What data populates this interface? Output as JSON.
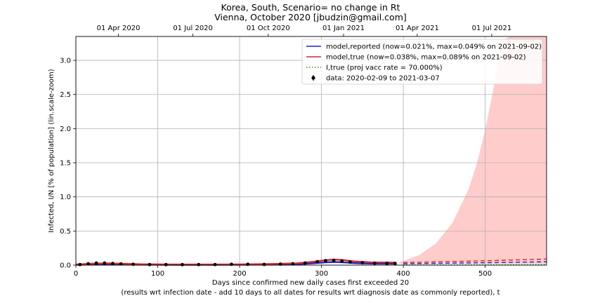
{
  "chart_data": {
    "type": "line",
    "title": "Korea, South, Scenario= no change in Rt",
    "subtitle": "Vienna, October 2020 [jbudzin@gmail.com]",
    "xlabel": "Days since confirmed new daily cases first exceeded 20",
    "xlabel2": "(results wrt infection date - add 10 days to all dates for results wrt diagnosis date as commonly reported), t",
    "ylabel": "Infected, I/N [% of population] (lin.scale-zoom)",
    "xlim": [
      0,
      575
    ],
    "ylim": [
      0,
      3.35
    ],
    "x_ticks": [
      0,
      100,
      200,
      300,
      400,
      500
    ],
    "y_ticks": [
      0.0,
      0.5,
      1.0,
      1.5,
      2.0,
      2.5,
      3.0
    ],
    "y_tick_labels": [
      "0.0",
      "0.5",
      "1.0",
      "1.5",
      "2.0",
      "2.5",
      "3.0"
    ],
    "top_axis": {
      "ticks": [
        {
          "day": 52,
          "label": "01 Apr 2020"
        },
        {
          "day": 143,
          "label": "01 Jul 2020"
        },
        {
          "day": 235,
          "label": "01 Oct 2020"
        },
        {
          "day": 327,
          "label": "01 Jan 2021"
        },
        {
          "day": 417,
          "label": "01 Apr 2021"
        },
        {
          "day": 508,
          "label": "01 Jul 2021"
        }
      ]
    },
    "grid": true,
    "legend_position": "top-right",
    "legend": [
      {
        "label": "model,reported (now=0.021%, max=0.049% on 2021-09-02)",
        "color": "#1f1fcf",
        "style": "solid"
      },
      {
        "label": "model,true (now=0.038%, max=0.089% on 2021-09-02)",
        "color": "#d62728",
        "style": "solid"
      },
      {
        "label": "I,true (proj vacc rate = 70.000%)",
        "color": "#2ca02c",
        "style": "dotted"
      },
      {
        "label": "data: 2020-02-09 to 2021-03-07",
        "color": "#000000",
        "style": "marker"
      }
    ],
    "series": [
      {
        "name": "model,reported",
        "color": "#1f1fcf",
        "x": [
          0,
          20,
          40,
          60,
          80,
          120,
          160,
          200,
          240,
          270,
          290,
          305,
          315,
          325,
          340,
          360,
          390
        ],
        "y": [
          0.005,
          0.012,
          0.014,
          0.011,
          0.007,
          0.005,
          0.005,
          0.006,
          0.009,
          0.014,
          0.028,
          0.04,
          0.046,
          0.042,
          0.03,
          0.022,
          0.021
        ]
      },
      {
        "name": "model,true",
        "color": "#d62728",
        "x": [
          0,
          20,
          40,
          60,
          80,
          120,
          160,
          200,
          240,
          270,
          290,
          305,
          315,
          325,
          340,
          360,
          390
        ],
        "y": [
          0.01,
          0.022,
          0.026,
          0.02,
          0.013,
          0.01,
          0.01,
          0.011,
          0.017,
          0.026,
          0.05,
          0.072,
          0.082,
          0.076,
          0.055,
          0.04,
          0.038
        ]
      },
      {
        "name": "data",
        "color": "#000000",
        "x": [
          5,
          15,
          25,
          35,
          45,
          55,
          70,
          90,
          110,
          130,
          150,
          170,
          190,
          210,
          230,
          250,
          265,
          280,
          295,
          305,
          315,
          325,
          335,
          350,
          365,
          380,
          390
        ],
        "y": [
          0.008,
          0.02,
          0.03,
          0.03,
          0.024,
          0.018,
          0.012,
          0.008,
          0.007,
          0.007,
          0.008,
          0.008,
          0.012,
          0.012,
          0.01,
          0.015,
          0.02,
          0.03,
          0.05,
          0.065,
          0.07,
          0.06,
          0.045,
          0.035,
          0.028,
          0.025,
          0.024
        ]
      },
      {
        "name": "model,reported projection",
        "color": "#1f1fcf",
        "style": "dashed",
        "x": [
          400,
          450,
          500,
          540,
          575
        ],
        "y": [
          0.021,
          0.027,
          0.035,
          0.042,
          0.049
        ]
      },
      {
        "name": "model,true projection",
        "color": "#d62728",
        "style": "dashed",
        "x": [
          400,
          450,
          500,
          540,
          575
        ],
        "y": [
          0.038,
          0.05,
          0.064,
          0.077,
          0.089
        ]
      },
      {
        "name": "I,true projection",
        "color": "#2ca02c",
        "style": "dotted",
        "x": [
          400,
          450,
          500,
          540,
          575
        ],
        "y": [
          0.003,
          0.004,
          0.006,
          0.008,
          0.01
        ]
      }
    ],
    "uncertainty_band": {
      "color": "#ffaaaa",
      "x": [
        395,
        420,
        440,
        460,
        480,
        490,
        500,
        510,
        520,
        530,
        540,
        550,
        575
      ],
      "lower": [
        0.02,
        0.02,
        0.02,
        0.02,
        0.02,
        0.02,
        0.02,
        0.02,
        0.02,
        0.02,
        0.02,
        0.02,
        0.02
      ],
      "upper": [
        0.04,
        0.15,
        0.32,
        0.62,
        1.12,
        1.5,
        1.98,
        2.58,
        3.28,
        3.4,
        3.4,
        3.4,
        3.4
      ]
    }
  }
}
